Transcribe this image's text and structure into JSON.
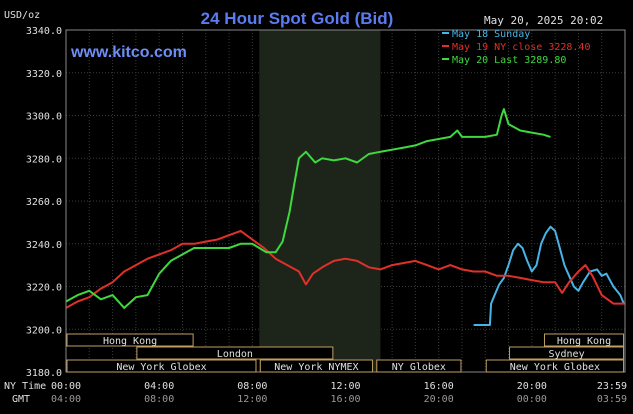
{
  "chart_data": {
    "type": "line",
    "title": "24 Hour Spot Gold (Bid)",
    "y_unit_label": "USD/oz",
    "date_label": "May 20, 2025 20:02",
    "site": "www.kitco.com",
    "ylim": [
      3180,
      3340
    ],
    "y_ticks": [
      "3180.0",
      "3200.0",
      "3220.0",
      "3240.0",
      "3260.0",
      "3280.0",
      "3300.0",
      "3320.0",
      "3340.0"
    ],
    "y_tick_values": [
      3180,
      3200,
      3220,
      3240,
      3260,
      3280,
      3300,
      3320,
      3340
    ],
    "x_unit": "hours (NY time)",
    "xlim": [
      0,
      24
    ],
    "ny_time_label": "NY Time",
    "gmt_label": "GMT",
    "x_ticks_ny": [
      "00:00",
      "04:00",
      "08:00",
      "12:00",
      "16:00",
      "20:00",
      "23:59"
    ],
    "x_ticks_gmt": [
      "04:00",
      "08:00",
      "12:00",
      "16:00",
      "20:00",
      "00:00",
      "03:59"
    ],
    "x_tick_hours": [
      0,
      4,
      8,
      12,
      16,
      20,
      23.98
    ],
    "shaded_session_hours": [
      8.3,
      13.5
    ],
    "legend_placement": "top-right",
    "grid": true,
    "colors": {
      "background": "#000000",
      "grid": "#3a3a3a",
      "text": "#e0e0e0",
      "title": "#5b7cf0",
      "site": "#6e8ef7",
      "session_shade": "#1d2419"
    },
    "series": [
      {
        "name": "May 18 Sunday",
        "color": "#46b4e6",
        "points": [
          [
            17.5,
            3202
          ],
          [
            18.2,
            3202
          ],
          [
            18.25,
            3212
          ],
          [
            18.4,
            3216
          ],
          [
            18.6,
            3221
          ],
          [
            18.8,
            3224
          ],
          [
            19.0,
            3230
          ],
          [
            19.2,
            3237
          ],
          [
            19.4,
            3240
          ],
          [
            19.6,
            3238
          ],
          [
            19.8,
            3232
          ],
          [
            20.0,
            3227
          ],
          [
            20.2,
            3230
          ],
          [
            20.4,
            3240
          ],
          [
            20.6,
            3245
          ],
          [
            20.8,
            3248
          ],
          [
            21.0,
            3246
          ],
          [
            21.2,
            3238
          ],
          [
            21.4,
            3230
          ],
          [
            21.6,
            3225
          ],
          [
            21.8,
            3220
          ],
          [
            22.0,
            3218
          ],
          [
            22.2,
            3222
          ],
          [
            22.5,
            3227
          ],
          [
            22.8,
            3228
          ],
          [
            23.0,
            3225
          ],
          [
            23.2,
            3226
          ],
          [
            23.5,
            3220
          ],
          [
            23.8,
            3216
          ],
          [
            23.95,
            3212
          ]
        ]
      },
      {
        "name": "May 19 NY close 3228.40",
        "color": "#e0302a",
        "points": [
          [
            0,
            3210
          ],
          [
            0.5,
            3213
          ],
          [
            1,
            3215
          ],
          [
            1.5,
            3219
          ],
          [
            2,
            3222
          ],
          [
            2.5,
            3227
          ],
          [
            3,
            3230
          ],
          [
            3.5,
            3233
          ],
          [
            4,
            3235
          ],
          [
            4.5,
            3237
          ],
          [
            5,
            3240
          ],
          [
            5.5,
            3240
          ],
          [
            6,
            3241
          ],
          [
            6.5,
            3242
          ],
          [
            7,
            3244
          ],
          [
            7.5,
            3246
          ],
          [
            8,
            3242
          ],
          [
            8.5,
            3238
          ],
          [
            9,
            3233
          ],
          [
            9.5,
            3230
          ],
          [
            10,
            3227
          ],
          [
            10.3,
            3221
          ],
          [
            10.6,
            3226
          ],
          [
            11,
            3229
          ],
          [
            11.5,
            3232
          ],
          [
            12,
            3233
          ],
          [
            12.5,
            3232
          ],
          [
            13,
            3229
          ],
          [
            13.5,
            3228
          ],
          [
            14,
            3230
          ],
          [
            14.5,
            3231
          ],
          [
            15,
            3232
          ],
          [
            15.5,
            3230
          ],
          [
            16,
            3228
          ],
          [
            16.5,
            3230
          ],
          [
            17,
            3228
          ],
          [
            17.5,
            3227
          ],
          [
            18,
            3227
          ],
          [
            18.5,
            3225
          ],
          [
            19,
            3225
          ],
          [
            19.5,
            3224
          ],
          [
            20,
            3223
          ],
          [
            20.5,
            3222
          ],
          [
            21,
            3222
          ],
          [
            21.3,
            3217
          ],
          [
            21.6,
            3222
          ],
          [
            22,
            3227
          ],
          [
            22.3,
            3230
          ],
          [
            22.6,
            3225
          ],
          [
            23,
            3216
          ],
          [
            23.5,
            3212
          ],
          [
            23.98,
            3212
          ]
        ]
      },
      {
        "name": "May 20 Last 3289.80",
        "color": "#3fd83f",
        "points": [
          [
            0,
            3213
          ],
          [
            0.5,
            3216
          ],
          [
            1,
            3218
          ],
          [
            1.5,
            3214
          ],
          [
            2,
            3216
          ],
          [
            2.5,
            3210
          ],
          [
            3,
            3215
          ],
          [
            3.5,
            3216
          ],
          [
            4,
            3226
          ],
          [
            4.5,
            3232
          ],
          [
            5,
            3235
          ],
          [
            5.5,
            3238
          ],
          [
            6,
            3238
          ],
          [
            6.5,
            3238
          ],
          [
            7,
            3238
          ],
          [
            7.5,
            3240
          ],
          [
            8,
            3240
          ],
          [
            8.3,
            3238
          ],
          [
            8.6,
            3236
          ],
          [
            9,
            3236
          ],
          [
            9.3,
            3241
          ],
          [
            9.6,
            3255
          ],
          [
            9.8,
            3268
          ],
          [
            10,
            3280
          ],
          [
            10.3,
            3283
          ],
          [
            10.7,
            3278
          ],
          [
            11,
            3280
          ],
          [
            11.5,
            3279
          ],
          [
            12,
            3280
          ],
          [
            12.5,
            3278
          ],
          [
            13,
            3282
          ],
          [
            13.5,
            3283
          ],
          [
            14,
            3284
          ],
          [
            14.5,
            3285
          ],
          [
            15,
            3286
          ],
          [
            15.5,
            3288
          ],
          [
            16,
            3289
          ],
          [
            16.5,
            3290
          ],
          [
            16.8,
            3293
          ],
          [
            17,
            3290
          ],
          [
            17.5,
            3290
          ],
          [
            18,
            3290
          ],
          [
            18.5,
            3291
          ],
          [
            18.7,
            3300
          ],
          [
            18.8,
            3303
          ],
          [
            19,
            3296
          ],
          [
            19.5,
            3293
          ],
          [
            20,
            3292
          ],
          [
            20.5,
            3291
          ],
          [
            20.8,
            3290
          ]
        ]
      }
    ],
    "session_bars": [
      {
        "label": "Hong Kong",
        "start": 0,
        "end": 5.5,
        "row": 0
      },
      {
        "label": "Hong Kong",
        "start": 20.5,
        "end": 23.98,
        "row": 0
      },
      {
        "label": "London",
        "start": 3.0,
        "end": 11.5,
        "row": 1
      },
      {
        "label": "Sydney",
        "start": 19.0,
        "end": 23.98,
        "row": 1
      },
      {
        "label": "New York Globex",
        "start": 0,
        "end": 8.2,
        "row": 2
      },
      {
        "label": "New York NYMEX",
        "start": 8.3,
        "end": 13.2,
        "row": 2
      },
      {
        "label": "NY Globex",
        "start": 13.3,
        "end": 17.0,
        "row": 2
      },
      {
        "label": "New York Globex",
        "start": 18.0,
        "end": 23.98,
        "row": 2
      }
    ]
  }
}
